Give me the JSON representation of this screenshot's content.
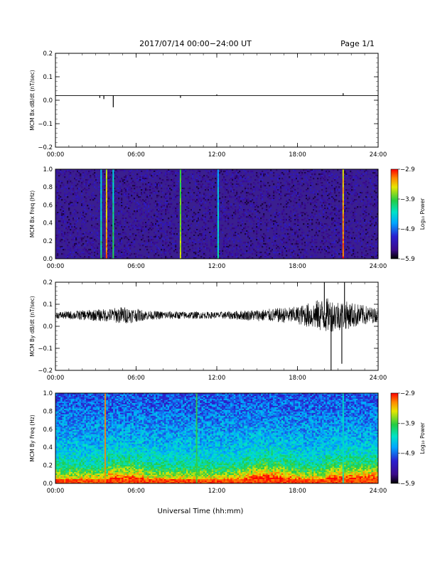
{
  "header": {
    "title": "2017/07/14  00:00−24:00 UT",
    "page": "Page 1/1"
  },
  "colors": {
    "spectrogram_background_bx": "#3a1f8f",
    "axis": "#000000",
    "trace": "#000000"
  },
  "colorbar": {
    "ticks": [
      "−2.9",
      "−3.9",
      "−4.9",
      "−5.9"
    ],
    "label": "Log₁₀ Power",
    "range": [
      -5.9,
      -2.9
    ]
  },
  "time_ticks": [
    "00:00",
    "06:00",
    "12:00",
    "18:00",
    "24:00"
  ],
  "xlabel": "Universal Time (hh:mm)",
  "chart_data": [
    {
      "type": "line",
      "ylabel": "MCM Bx dB/dt (nT/sec)",
      "ylim": [
        -0.2,
        0.2
      ],
      "yticks": [
        "0.2",
        "0.1",
        "0.0",
        "−0.1",
        "−0.2"
      ],
      "xlim": [
        0,
        24
      ],
      "baseline": 0.02,
      "spikes": [
        {
          "t": 3.3,
          "y": 0.01
        },
        {
          "t": 3.6,
          "y": 0.005
        },
        {
          "t": 4.3,
          "y": -0.03
        },
        {
          "t": 9.3,
          "y": 0.01
        },
        {
          "t": 12.0,
          "y": 0.025
        },
        {
          "t": 21.4,
          "y": 0.03
        }
      ]
    },
    {
      "type": "heatmap",
      "ylabel": "MCM Bx Freq (Hz)",
      "ylim": [
        0,
        1.0
      ],
      "yticks": [
        "1.0",
        "0.8",
        "0.6",
        "0.4",
        "0.2",
        "0.0"
      ],
      "xlim": [
        0,
        24
      ],
      "background_level": -5.5,
      "events": [
        {
          "t": 3.4,
          "level": -4.6
        },
        {
          "t": 3.8,
          "level": -3.6
        },
        {
          "t": 4.3,
          "level": -4.4
        },
        {
          "t": 9.3,
          "level": -4.0
        },
        {
          "t": 12.1,
          "level": -4.7
        },
        {
          "t": 21.4,
          "level": -3.5
        }
      ]
    },
    {
      "type": "line",
      "ylabel": "MCM By dB/dt (nT/sec)",
      "ylim": [
        -0.2,
        0.2
      ],
      "yticks": [
        "0.2",
        "0.1",
        "0.0",
        "−0.1",
        "−0.2"
      ],
      "xlim": [
        0,
        24
      ],
      "mean": 0.05,
      "noise_envelope": [
        {
          "t": 0,
          "amp": 0.015
        },
        {
          "t": 4,
          "amp": 0.03
        },
        {
          "t": 5,
          "amp": 0.04
        },
        {
          "t": 7,
          "amp": 0.02
        },
        {
          "t": 12,
          "amp": 0.015
        },
        {
          "t": 16,
          "amp": 0.03
        },
        {
          "t": 18,
          "amp": 0.04
        },
        {
          "t": 20,
          "amp": 0.08
        },
        {
          "t": 22,
          "amp": 0.06
        },
        {
          "t": 24,
          "amp": 0.03
        }
      ],
      "spikes": [
        {
          "t": 20.5,
          "y": -0.2
        },
        {
          "t": 21.3,
          "y": -0.17
        },
        {
          "t": 20.0,
          "y": 0.2
        },
        {
          "t": 21.5,
          "y": 0.2
        }
      ]
    },
    {
      "type": "heatmap",
      "ylabel": "MCM By Freq (Hz)",
      "ylim": [
        0,
        1.0
      ],
      "yticks": [
        "1.0",
        "0.8",
        "0.6",
        "0.4",
        "0.2",
        "0.0"
      ],
      "xlim": [
        0,
        24
      ],
      "events": [
        {
          "t": 3.7,
          "level": -3.2
        },
        {
          "t": 10.5,
          "level": -3.9
        },
        {
          "t": 21.4,
          "level": -4.3
        }
      ]
    }
  ]
}
